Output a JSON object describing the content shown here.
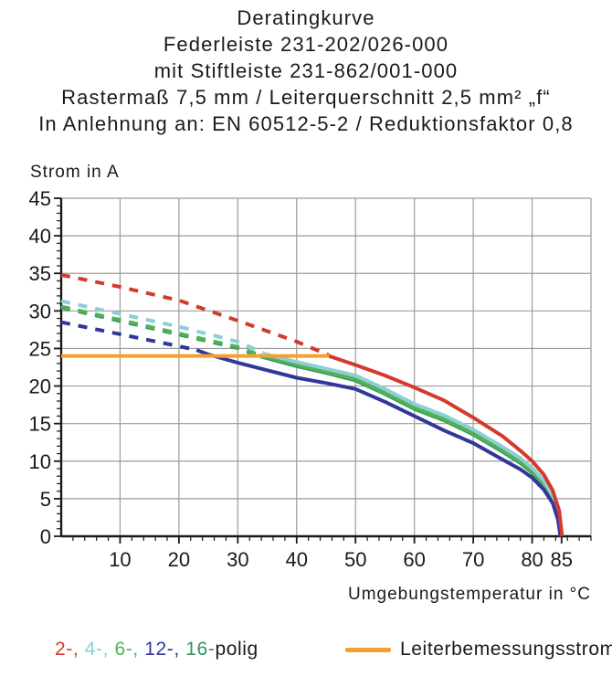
{
  "title": {
    "lines": [
      "Deratingkurve",
      "Federleiste 231-202/026-000",
      "mit Stiftleiste 231-862/001-000",
      "Rastermaß 7,5 mm / Leiterquerschnitt 2,5 mm² „f“",
      "In Anlehnung an: EN 60512-5-2 / Reduktionsfaktor 0,8"
    ]
  },
  "chart_data": {
    "type": "line",
    "xlabel": "Umgebungstemperatur in °C",
    "ylabel": "Strom in A",
    "xlim": [
      0,
      90
    ],
    "ylim": [
      0,
      45
    ],
    "x_tick_labels": [
      10,
      20,
      30,
      40,
      50,
      60,
      70,
      80,
      85
    ],
    "y_tick_labels": [
      0,
      5,
      10,
      15,
      20,
      25,
      30,
      35,
      40,
      45
    ],
    "grid": {
      "x_gridlines": [
        10,
        20,
        30,
        40,
        50,
        60,
        70,
        80,
        90
      ],
      "y_gridlines": [
        5,
        10,
        15,
        20,
        25,
        30,
        35,
        40,
        45
      ],
      "x_minor_step": 2,
      "y_minor_step": 1,
      "color": "#9b9b9b"
    },
    "axis_color": "#1a1a1a",
    "reference_line": {
      "label": "Leiterbemessungsstrom",
      "value": 24,
      "x_range": [
        0,
        45.5
      ],
      "color": "#f5a02e"
    },
    "series": [
      {
        "name": "16-polig",
        "color": "#2f9560",
        "dashed": [
          [
            0,
            30.45
          ],
          [
            10,
            28.65
          ],
          [
            20,
            26.85
          ],
          [
            30,
            25.05
          ],
          [
            33.8,
            23.95
          ]
        ],
        "solid": [
          [
            33.8,
            23.95
          ],
          [
            40,
            22.65
          ],
          [
            45,
            21.75
          ],
          [
            50,
            20.75
          ],
          [
            55,
            18.95
          ],
          [
            60,
            16.95
          ],
          [
            65,
            15.45
          ],
          [
            70,
            13.55
          ],
          [
            75,
            11.25
          ],
          [
            78,
            9.75
          ],
          [
            80,
            8.45
          ],
          [
            82,
            6.75
          ],
          [
            83.5,
            4.85
          ],
          [
            84.5,
            2.45
          ],
          [
            84.9,
            0
          ]
        ]
      },
      {
        "name": "6-polig",
        "color": "#52b154",
        "dashed": [
          [
            0,
            30.6
          ],
          [
            10,
            28.8
          ],
          [
            20,
            27.0
          ],
          [
            30,
            25.2
          ],
          [
            33.8,
            24.1
          ]
        ],
        "solid": [
          [
            33.8,
            24.1
          ],
          [
            40,
            22.8
          ],
          [
            45,
            21.9
          ],
          [
            50,
            20.9
          ],
          [
            55,
            19.1
          ],
          [
            60,
            17.1
          ],
          [
            65,
            15.6
          ],
          [
            70,
            13.7
          ],
          [
            75,
            11.4
          ],
          [
            78,
            9.9
          ],
          [
            80,
            8.6
          ],
          [
            82,
            6.9
          ],
          [
            83.5,
            5.0
          ],
          [
            84.5,
            2.6
          ],
          [
            84.9,
            0
          ]
        ]
      },
      {
        "name": "4-polig",
        "color": "#8ccfd6",
        "dashed": [
          [
            0,
            31.3
          ],
          [
            10,
            29.6
          ],
          [
            20,
            27.9
          ],
          [
            30,
            25.9
          ],
          [
            34.4,
            24.4
          ]
        ],
        "solid": [
          [
            34.4,
            24.3
          ],
          [
            40,
            23.2
          ],
          [
            45,
            22.3
          ],
          [
            50,
            21.4
          ],
          [
            55,
            19.6
          ],
          [
            60,
            17.6
          ],
          [
            65,
            16.1
          ],
          [
            70,
            14.2
          ],
          [
            75,
            11.9
          ],
          [
            78,
            10.4
          ],
          [
            80,
            9.1
          ],
          [
            82,
            7.4
          ],
          [
            83.5,
            5.4
          ],
          [
            84.5,
            2.9
          ],
          [
            85,
            0
          ]
        ]
      },
      {
        "name": "12-polig",
        "color": "#32379b",
        "dashed": [
          [
            0,
            28.5
          ],
          [
            10,
            26.9
          ],
          [
            20,
            25.3
          ],
          [
            23,
            24.8
          ]
        ],
        "solid": [
          [
            23,
            24.8
          ],
          [
            25,
            24.2
          ],
          [
            30,
            23.1
          ],
          [
            35,
            22.1
          ],
          [
            40,
            21.1
          ],
          [
            45,
            20.4
          ],
          [
            50,
            19.6
          ],
          [
            55,
            17.9
          ],
          [
            60,
            16.0
          ],
          [
            65,
            14.1
          ],
          [
            70,
            12.4
          ],
          [
            75,
            10.2
          ],
          [
            78,
            8.9
          ],
          [
            80,
            7.8
          ],
          [
            82,
            6.2
          ],
          [
            83.5,
            4.4
          ],
          [
            84.4,
            2.2
          ],
          [
            84.8,
            0
          ]
        ]
      },
      {
        "name": "2-polig",
        "color": "#d23b2c",
        "dashed": [
          [
            0,
            34.8
          ],
          [
            10,
            33.2
          ],
          [
            20,
            31.4
          ],
          [
            30,
            28.7
          ],
          [
            40,
            25.9
          ],
          [
            45.5,
            24.1
          ]
        ],
        "solid": [
          [
            45.5,
            24.0
          ],
          [
            50,
            22.8
          ],
          [
            55,
            21.4
          ],
          [
            60,
            19.8
          ],
          [
            65,
            18.1
          ],
          [
            70,
            15.8
          ],
          [
            75,
            13.3
          ],
          [
            78,
            11.4
          ],
          [
            80,
            10.0
          ],
          [
            82,
            8.2
          ],
          [
            83.5,
            6.1
          ],
          [
            84.6,
            3.4
          ],
          [
            85.1,
            0
          ]
        ]
      }
    ],
    "legend": {
      "poles": [
        {
          "label": "2-,",
          "color": "#d23b2c"
        },
        {
          "label": "4-,",
          "color": "#8ccfd6"
        },
        {
          "label": "6-,",
          "color": "#52b154"
        },
        {
          "label": "12-,",
          "color": "#32379b"
        },
        {
          "label": "16-",
          "color": "#2f9560"
        }
      ],
      "poles_suffix": "polig",
      "reference_label": "Leiterbemessungsstrom"
    }
  }
}
